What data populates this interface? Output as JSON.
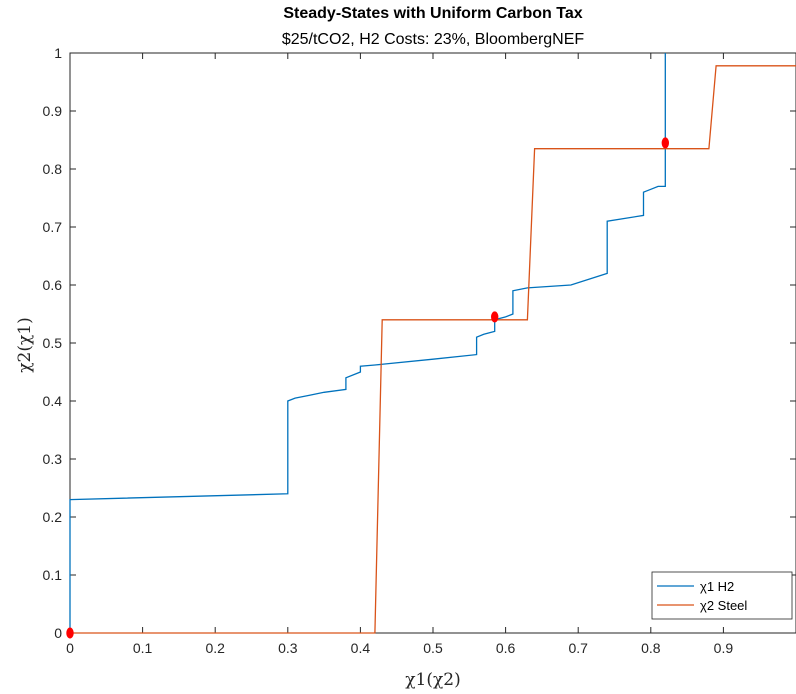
{
  "chart_data": {
    "type": "line",
    "title": "Steady-States with Uniform Carbon Tax",
    "subtitle": "$25/tCO2, H2 Costs: 23%, BloombergNEF",
    "xlabel": "χ1(χ2)",
    "ylabel": "χ2(χ1)",
    "xlim": [
      0,
      1
    ],
    "ylim": [
      0,
      1
    ],
    "xticks": [
      "0",
      "0.1",
      "0.2",
      "0.3",
      "0.4",
      "0.5",
      "0.6",
      "0.7",
      "0.8",
      "0.9"
    ],
    "yticks": [
      "0",
      "0.1",
      "0.2",
      "0.3",
      "0.4",
      "0.5",
      "0.6",
      "0.7",
      "0.8",
      "0.9",
      "1"
    ],
    "grid": false,
    "legend_position": "bottom-right",
    "series": [
      {
        "name": "χ1 H2",
        "color": "#0072BD",
        "points": [
          [
            0,
            0
          ],
          [
            0,
            0.23
          ],
          [
            0.3,
            0.24
          ],
          [
            0.3,
            0.4
          ],
          [
            0.31,
            0.405
          ],
          [
            0.33,
            0.41
          ],
          [
            0.35,
            0.415
          ],
          [
            0.38,
            0.42
          ],
          [
            0.38,
            0.44
          ],
          [
            0.4,
            0.45
          ],
          [
            0.4,
            0.46
          ],
          [
            0.42,
            0.462
          ],
          [
            0.5,
            0.472
          ],
          [
            0.56,
            0.48
          ],
          [
            0.56,
            0.51
          ],
          [
            0.57,
            0.515
          ],
          [
            0.585,
            0.52
          ],
          [
            0.585,
            0.54
          ],
          [
            0.6,
            0.545
          ],
          [
            0.61,
            0.55
          ],
          [
            0.61,
            0.59
          ],
          [
            0.63,
            0.595
          ],
          [
            0.69,
            0.6
          ],
          [
            0.74,
            0.62
          ],
          [
            0.74,
            0.71
          ],
          [
            0.79,
            0.72
          ],
          [
            0.79,
            0.76
          ],
          [
            0.8,
            0.765
          ],
          [
            0.81,
            0.77
          ],
          [
            0.82,
            0.77
          ],
          [
            0.82,
            1.0
          ]
        ]
      },
      {
        "name": "χ2 Steel",
        "color": "#D95319",
        "points": [
          [
            0,
            0
          ],
          [
            0.42,
            0
          ],
          [
            0.43,
            0.54
          ],
          [
            0.63,
            0.54
          ],
          [
            0.64,
            0.835
          ],
          [
            0.88,
            0.835
          ],
          [
            0.89,
            0.978
          ],
          [
            1.0,
            0.978
          ]
        ]
      }
    ],
    "steady_states": {
      "color": "#FF0000",
      "points": [
        [
          0,
          0
        ],
        [
          0.585,
          0.545
        ],
        [
          0.82,
          0.845
        ]
      ]
    }
  }
}
